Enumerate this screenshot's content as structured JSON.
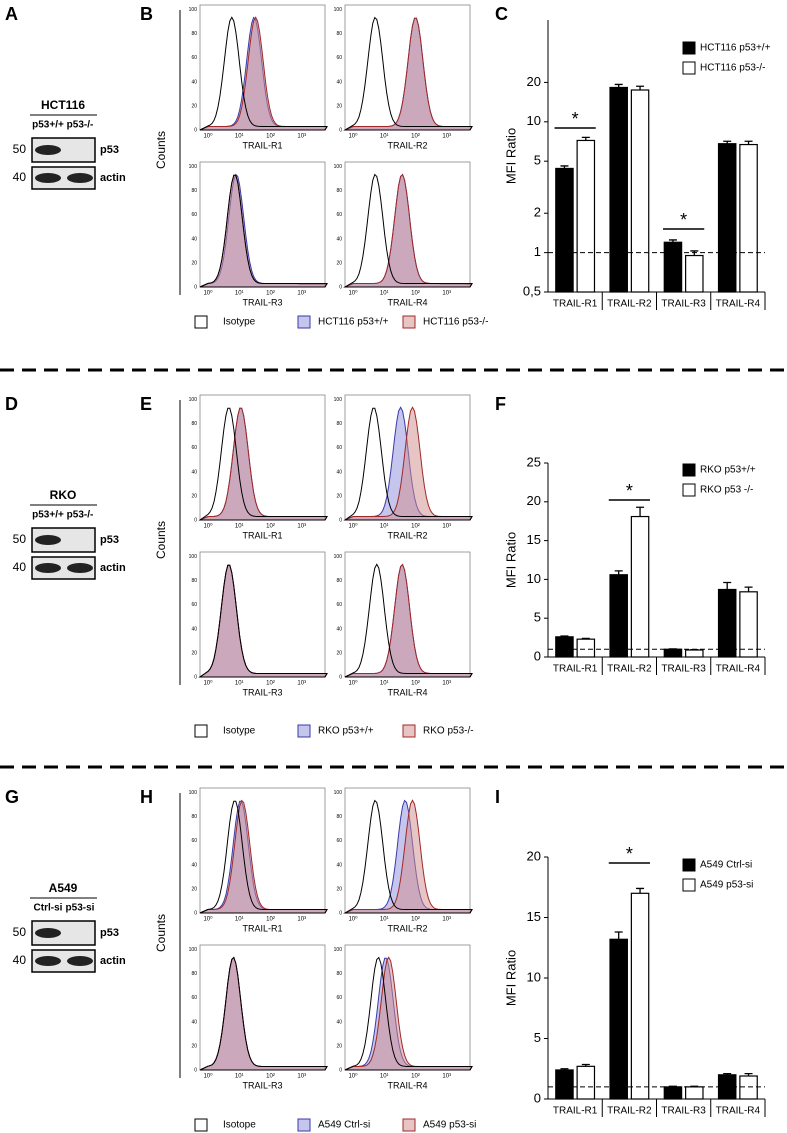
{
  "panel_letters": [
    "A",
    "B",
    "C",
    "D",
    "E",
    "F",
    "G",
    "H",
    "I"
  ],
  "histogram_axis": {
    "xticks": [
      "10⁰",
      "10¹",
      "10²",
      "10³"
    ],
    "yticks": [
      0,
      20,
      40,
      60,
      80,
      100
    ]
  },
  "rows": [
    {
      "blot": {
        "cell_line": "HCT116",
        "lanes": [
          "p53+/+",
          "p53-/-"
        ],
        "bands": [
          "p53",
          "actin"
        ],
        "markers": [
          50,
          40
        ]
      },
      "histograms": {
        "y_label": "Counts",
        "panels": [
          "TRAIL-R1",
          "TRAIL-R2",
          "TRAIL-R3",
          "TRAIL-R4"
        ],
        "legend": [
          "Isotype",
          "HCT116 p53+/+",
          "HCT116 p53-/-"
        ]
      }
    },
    {
      "blot": {
        "cell_line": "RKO",
        "lanes": [
          "p53+/+",
          "p53-/-"
        ],
        "bands": [
          "p53",
          "actin"
        ],
        "markers": [
          50,
          40
        ]
      },
      "histograms": {
        "y_label": "Counts",
        "panels": [
          "TRAIL-R1",
          "TRAIL-R2",
          "TRAIL-R3",
          "TRAIL-R4"
        ],
        "legend": [
          "Isotype",
          "RKO p53+/+",
          "RKO p53-/-"
        ]
      }
    },
    {
      "blot": {
        "cell_line": "A549",
        "lanes": [
          "Ctrl-si",
          "p53-si"
        ],
        "bands": [
          "p53",
          "actin"
        ],
        "markers": [
          50,
          40
        ]
      },
      "histograms": {
        "y_label": "Counts",
        "panels": [
          "TRAIL-R1",
          "TRAIL-R2",
          "TRAIL-R3",
          "TRAIL-R4"
        ],
        "legend": [
          "Isotope",
          "A549 Ctrl-si",
          "A549 p53-si"
        ]
      }
    }
  ],
  "chart_data": [
    {
      "type": "bar",
      "y_label": "MFI Ratio",
      "log_scale": true,
      "reference_line": 1,
      "categories": [
        "TRAIL-R1",
        "TRAIL-R2",
        "TRAIL-R3",
        "TRAIL-R4"
      ],
      "series": [
        {
          "name": "HCT116 p53+/+",
          "color": "#000000",
          "values": [
            4.4,
            18.3,
            1.2,
            6.8
          ],
          "errors": [
            0.2,
            1.0,
            0.05,
            0.3
          ]
        },
        {
          "name": "HCT116 p53-/-",
          "color": "#ffffff",
          "values": [
            7.2,
            17.5,
            0.95,
            6.7
          ],
          "errors": [
            0.4,
            1.2,
            0.08,
            0.4
          ]
        }
      ],
      "ylim": [
        0.5,
        60
      ],
      "yticks": [
        {
          "value": 0.5,
          "label": "0,5"
        },
        1,
        2,
        5,
        10,
        20
      ],
      "annotations": [
        "*",
        "*"
      ]
    },
    {
      "type": "bar",
      "y_label": "MFI Ratio",
      "log_scale": false,
      "reference_line": 1,
      "categories": [
        "TRAIL-R1",
        "TRAIL-R2",
        "TRAIL-R3",
        "TRAIL-R4"
      ],
      "series": [
        {
          "name": "RKO p53+/+",
          "color": "#000000",
          "values": [
            2.6,
            10.6,
            1.0,
            8.7
          ],
          "errors": [
            0.1,
            0.5,
            0.05,
            0.9
          ]
        },
        {
          "name": "RKO p53 -/-",
          "color": "#ffffff",
          "values": [
            2.3,
            18.1,
            0.9,
            8.4
          ],
          "errors": [
            0.1,
            1.2,
            0.05,
            0.6
          ]
        }
      ],
      "ylim": [
        0,
        25
      ],
      "yticks": [
        0,
        5,
        10,
        15,
        20,
        25
      ],
      "annotations": [
        "*"
      ]
    },
    {
      "type": "bar",
      "y_label": "MFI Ratio",
      "log_scale": false,
      "reference_line": 1,
      "categories": [
        "TRAIL-R1",
        "TRAIL-R2",
        "TRAIL-R3",
        "TRAIL-R4"
      ],
      "series": [
        {
          "name": "A549 Ctrl-si",
          "color": "#000000",
          "values": [
            2.4,
            13.2,
            1.0,
            2.0
          ],
          "errors": [
            0.1,
            0.6,
            0.05,
            0.1
          ]
        },
        {
          "name": "A549 p53-si",
          "color": "#ffffff",
          "values": [
            2.7,
            17.0,
            1.0,
            1.9
          ],
          "errors": [
            0.15,
            0.4,
            0.05,
            0.2
          ]
        }
      ],
      "ylim": [
        0,
        20
      ],
      "yticks": [
        0,
        5,
        10,
        15,
        20
      ],
      "annotations": [
        "*"
      ]
    }
  ]
}
